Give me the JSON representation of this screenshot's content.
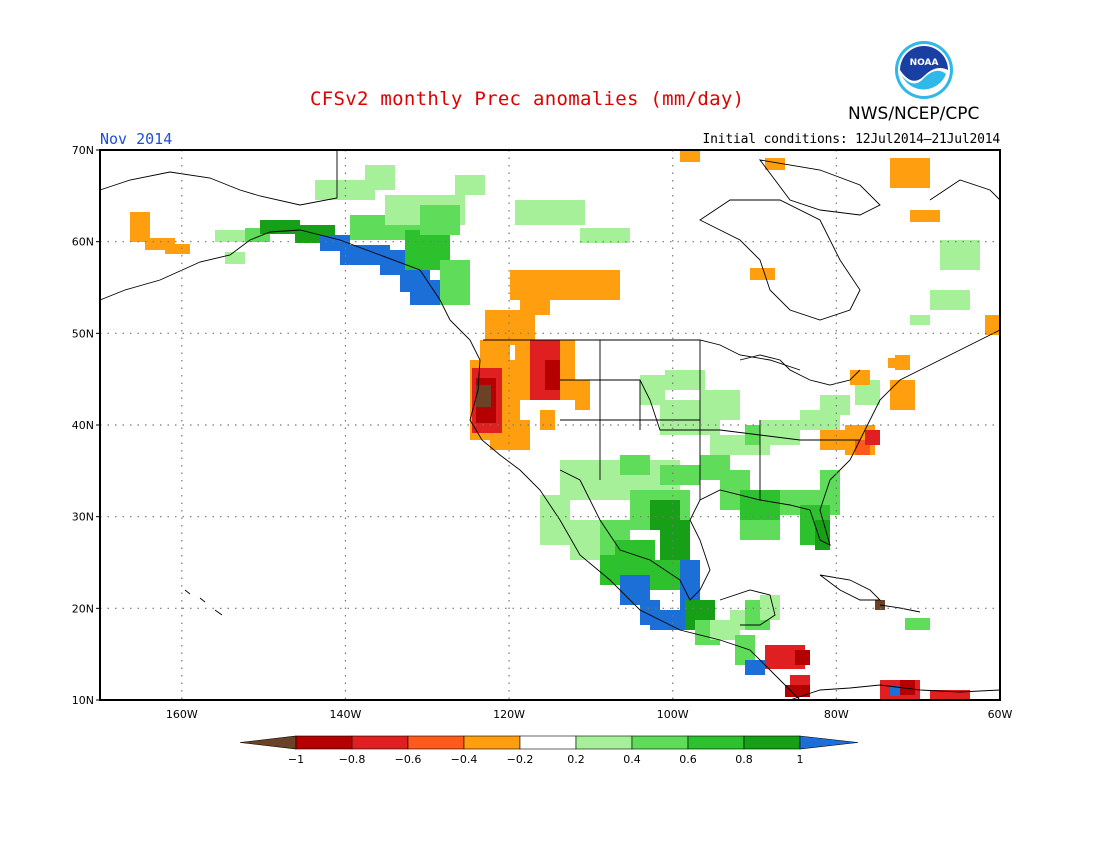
{
  "title": "CFSv2 monthly Prec anomalies (mm/day)",
  "month": "Nov 2014",
  "initial_conditions": "Initial conditions: 12Jul2014–21Jul2014",
  "agency": "NWS/NCEP/CPC",
  "logo_text": "NOAA",
  "lat_labels": [
    "70N",
    "60N",
    "50N",
    "40N",
    "30N",
    "20N",
    "10N"
  ],
  "lon_labels": [
    "160W",
    "140W",
    "120W",
    "100W",
    "80W",
    "60W"
  ],
  "colorbar": {
    "ticks": [
      "−1",
      "−0.8",
      "−0.6",
      "−0.4",
      "−0.2",
      "0.2",
      "0.4",
      "0.6",
      "0.8",
      "1"
    ],
    "colors": [
      "#6b4226",
      "#b40000",
      "#e02020",
      "#ff5a1e",
      "#ff9f10",
      "#ffffff",
      "#a7f09a",
      "#5fdc5a",
      "#2ec12e",
      "#17a017",
      "#1d6fd8"
    ]
  },
  "map": {
    "lat_range": [
      10,
      70
    ],
    "lon_range": [
      -170,
      -60
    ],
    "grid": "dotted"
  }
}
